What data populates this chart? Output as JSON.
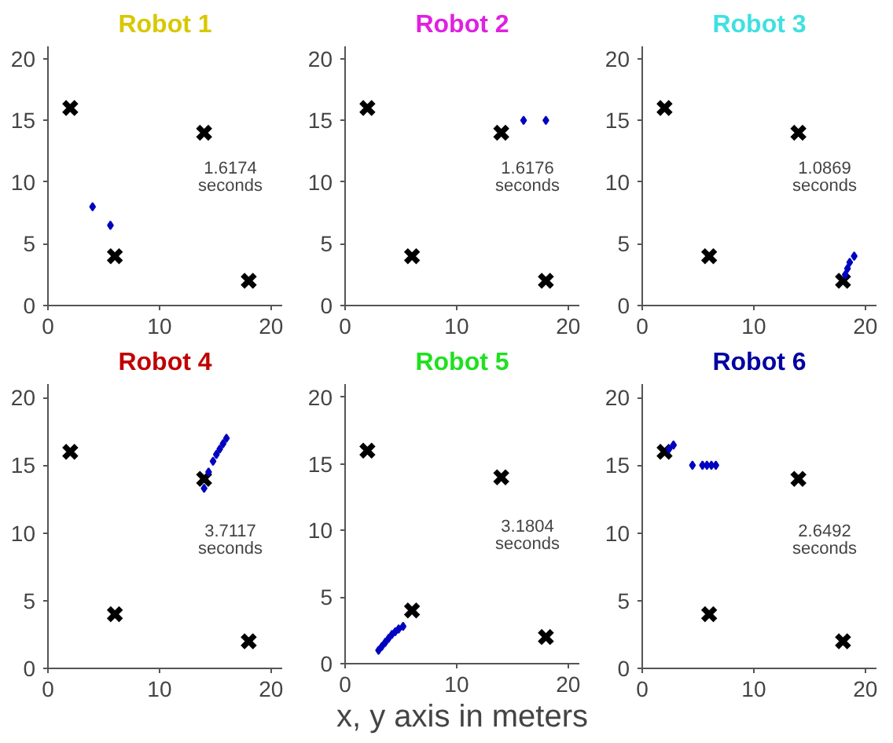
{
  "chart_data": [
    {
      "type": "scatter",
      "title": "Robot 1",
      "xlim": [
        0,
        21
      ],
      "ylim": [
        0,
        21
      ],
      "xticks": [
        0,
        10,
        20
      ],
      "yticks": [
        0,
        5,
        10,
        15,
        20
      ],
      "grid": false,
      "annotations": [
        "1.6174\nseconds"
      ],
      "series": [
        {
          "color": "#000000",
          "marker": "cross",
          "x": [
            2,
            14,
            6,
            18
          ],
          "values": [
            16,
            14,
            4,
            2
          ]
        },
        {
          "color": "#0000c0",
          "marker": "diamond",
          "x": [
            4,
            5.6
          ],
          "values": [
            8,
            6.5
          ]
        }
      ]
    },
    {
      "type": "scatter",
      "title": "Robot 2",
      "xlim": [
        0,
        21
      ],
      "ylim": [
        0,
        21
      ],
      "xticks": [
        0,
        10,
        20
      ],
      "yticks": [
        0,
        5,
        10,
        15,
        20
      ],
      "grid": false,
      "annotations": [
        "1.6176\nseconds"
      ],
      "series": [
        {
          "color": "#000000",
          "marker": "cross",
          "x": [
            2,
            14,
            6,
            18
          ],
          "values": [
            16,
            14,
            4,
            2
          ]
        },
        {
          "color": "#0000c0",
          "marker": "diamond",
          "x": [
            16,
            18
          ],
          "values": [
            15,
            15
          ]
        }
      ]
    },
    {
      "type": "scatter",
      "title": "Robot 3",
      "xlim": [
        0,
        21
      ],
      "ylim": [
        0,
        21
      ],
      "xticks": [
        0,
        10,
        20
      ],
      "yticks": [
        0,
        5,
        10,
        15,
        20
      ],
      "grid": false,
      "annotations": [
        "1.0869\nseconds"
      ],
      "series": [
        {
          "color": "#000000",
          "marker": "cross",
          "x": [
            2,
            14,
            6,
            18
          ],
          "values": [
            16,
            14,
            4,
            2
          ]
        },
        {
          "color": "#0000c0",
          "marker": "diamond",
          "x": [
            18.2,
            18.4,
            18.6,
            19
          ],
          "values": [
            2.5,
            3,
            3.5,
            4
          ]
        }
      ]
    },
    {
      "type": "scatter",
      "title": "Robot 4",
      "xlim": [
        0,
        21
      ],
      "ylim": [
        0,
        21
      ],
      "xticks": [
        0,
        10,
        20
      ],
      "yticks": [
        0,
        5,
        10,
        15,
        20
      ],
      "grid": false,
      "annotations": [
        "3.7117\nseconds"
      ],
      "series": [
        {
          "color": "#000000",
          "marker": "cross",
          "x": [
            2,
            14,
            6,
            18
          ],
          "values": [
            16,
            14,
            4,
            2
          ]
        },
        {
          "color": "#0000c0",
          "marker": "diamond",
          "x": [
            14,
            14.4,
            14.8,
            15.1,
            15.4,
            15.7,
            16
          ],
          "values": [
            13.3,
            14.5,
            15.3,
            15.8,
            16.2,
            16.6,
            17
          ]
        }
      ]
    },
    {
      "type": "scatter",
      "title": "Robot 5",
      "xlabel": "x, y axis in meters",
      "xlim": [
        0,
        21
      ],
      "ylim": [
        0,
        21
      ],
      "xticks": [
        0,
        10,
        20
      ],
      "yticks": [
        0,
        5,
        10,
        15,
        20
      ],
      "grid": false,
      "annotations": [
        "3.1804\nseconds"
      ],
      "series": [
        {
          "color": "#000000",
          "marker": "cross",
          "x": [
            2,
            14,
            6,
            18
          ],
          "values": [
            16,
            14,
            4,
            2
          ]
        },
        {
          "color": "#0000c0",
          "marker": "diamond",
          "x": [
            3,
            3.3,
            3.6,
            3.9,
            4.2,
            4.5,
            4.8,
            5.2
          ],
          "values": [
            1,
            1.3,
            1.6,
            1.9,
            2.2,
            2.4,
            2.6,
            2.8
          ]
        }
      ]
    },
    {
      "type": "scatter",
      "title": "Robot 6",
      "xlim": [
        0,
        21
      ],
      "ylim": [
        0,
        21
      ],
      "xticks": [
        0,
        10,
        20
      ],
      "yticks": [
        0,
        5,
        10,
        15,
        20
      ],
      "grid": false,
      "annotations": [
        "2.6492\nseconds"
      ],
      "series": [
        {
          "color": "#000000",
          "marker": "cross",
          "x": [
            2,
            14,
            6,
            18
          ],
          "values": [
            16,
            14,
            4,
            2
          ]
        },
        {
          "color": "#0000c0",
          "marker": "diamond",
          "x": [
            2.4,
            2.8,
            4.5,
            5.4,
            5.8,
            6.2,
            6.6
          ],
          "values": [
            16.2,
            16.5,
            15,
            15,
            15,
            15,
            15
          ]
        }
      ]
    }
  ]
}
